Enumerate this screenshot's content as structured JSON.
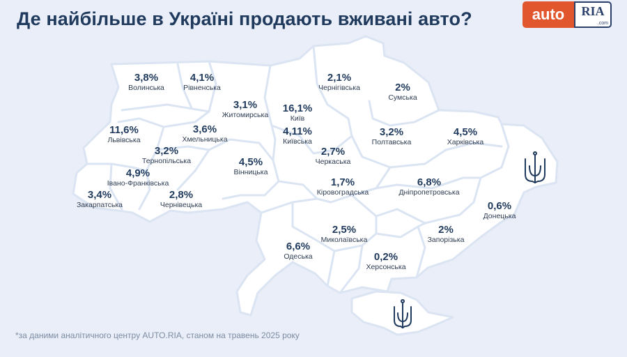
{
  "title": "Де найбільше в Україні продають вживані авто?",
  "logo": {
    "left": "auto",
    "right": "RIA",
    "domain": ".com"
  },
  "regions": [
    {
      "id": "volynska",
      "name": "Волинська",
      "value": "3,8%"
    },
    {
      "id": "rivnenska",
      "name": "Рівненська",
      "value": "4,1%"
    },
    {
      "id": "zhytomyrska",
      "name": "Житомирська",
      "value": "3,1%"
    },
    {
      "id": "kyiv",
      "name": "Київ",
      "value": "16,1%"
    },
    {
      "id": "kyivska",
      "name": "Київська",
      "value": "4,11%"
    },
    {
      "id": "chernihivska",
      "name": "Чернігівська",
      "value": "2,1%"
    },
    {
      "id": "sumska",
      "name": "Сумська",
      "value": "2%"
    },
    {
      "id": "lvivska",
      "name": "Львівська",
      "value": "11,6%"
    },
    {
      "id": "khmelnytska",
      "name": "Хмельницька",
      "value": "3,6%"
    },
    {
      "id": "ternopilska",
      "name": "Тернопільська",
      "value": "3,2%"
    },
    {
      "id": "ivano_frankivska",
      "name": "Івано-Франківська",
      "value": "4,9%"
    },
    {
      "id": "zakarpatska",
      "name": "Закарпатська",
      "value": "3,4%"
    },
    {
      "id": "chernivetska",
      "name": "Чернівецька",
      "value": "2,8%"
    },
    {
      "id": "vinnytska",
      "name": "Вінницька",
      "value": "4,5%"
    },
    {
      "id": "cherkaska",
      "name": "Черкаська",
      "value": "2,7%"
    },
    {
      "id": "poltavska",
      "name": "Полтавська",
      "value": "3,2%"
    },
    {
      "id": "kharkivska",
      "name": "Харківська",
      "value": "4,5%"
    },
    {
      "id": "kirovohradska",
      "name": "Кіровоградська",
      "value": "1,7%"
    },
    {
      "id": "dnipropetrovska",
      "name": "Дніпропетровська",
      "value": "6,8%"
    },
    {
      "id": "donetska",
      "name": "Донецька",
      "value": "0,6%"
    },
    {
      "id": "odeska",
      "name": "Одеська",
      "value": "6,6%"
    },
    {
      "id": "mykolaivska",
      "name": "Миколаївська",
      "value": "2,5%"
    },
    {
      "id": "khersonska",
      "name": "Херсонська",
      "value": "0,2%"
    },
    {
      "id": "zaporizka",
      "name": "Запорізька",
      "value": "2%"
    }
  ],
  "footnote": "*за даними аналітичного центру AUTO.RIA, станом на травень 2025 року",
  "colors": {
    "title": "#1f3a5c",
    "background": "#e9eef8",
    "map_fill": "#ffffff",
    "border": "#dbe4f2",
    "logo_accent": "#e2562d",
    "trident": "#1f3a5c"
  },
  "icons": [
    "trident-icon"
  ]
}
